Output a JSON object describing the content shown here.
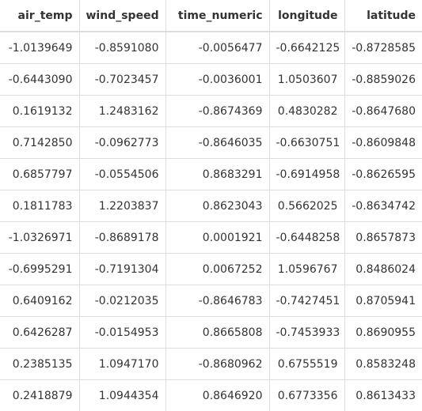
{
  "table": {
    "columns": [
      "air_temp",
      "wind_speed",
      "time_numeric",
      "longitude",
      "latitude"
    ],
    "rows": [
      [
        "-1.0139649",
        "-0.8591080",
        "-0.0056477",
        "-0.6642125",
        "-0.8728585"
      ],
      [
        "-0.6443090",
        "-0.7023457",
        "-0.0036001",
        "1.0503607",
        "-0.8859026"
      ],
      [
        "0.1619132",
        "1.2483162",
        "-0.8674369",
        "0.4830282",
        "-0.8647680"
      ],
      [
        "0.7142850",
        "-0.0962773",
        "-0.8646035",
        "-0.6630751",
        "-0.8609848"
      ],
      [
        "0.6857797",
        "-0.0554506",
        "0.8683291",
        "-0.6914958",
        "-0.8626595"
      ],
      [
        "0.1811783",
        "1.2203837",
        "0.8623043",
        "0.5662025",
        "-0.8634742"
      ],
      [
        "-1.0326971",
        "-0.8689178",
        "0.0001921",
        "-0.6448258",
        "0.8657873"
      ],
      [
        "-0.6995291",
        "-0.7191304",
        "0.0067252",
        "1.0596767",
        "0.8486024"
      ],
      [
        "0.6409162",
        "-0.0212035",
        "-0.8646783",
        "-0.7427451",
        "0.8705941"
      ],
      [
        "0.6426287",
        "-0.0154953",
        "0.8665808",
        "-0.7453933",
        "0.8690955"
      ],
      [
        "0.2385135",
        "1.0947170",
        "-0.8680962",
        "0.6755519",
        "0.8583248"
      ],
      [
        "0.2418879",
        "1.0944354",
        "0.8646920",
        "0.6773356",
        "0.8613433"
      ]
    ]
  }
}
